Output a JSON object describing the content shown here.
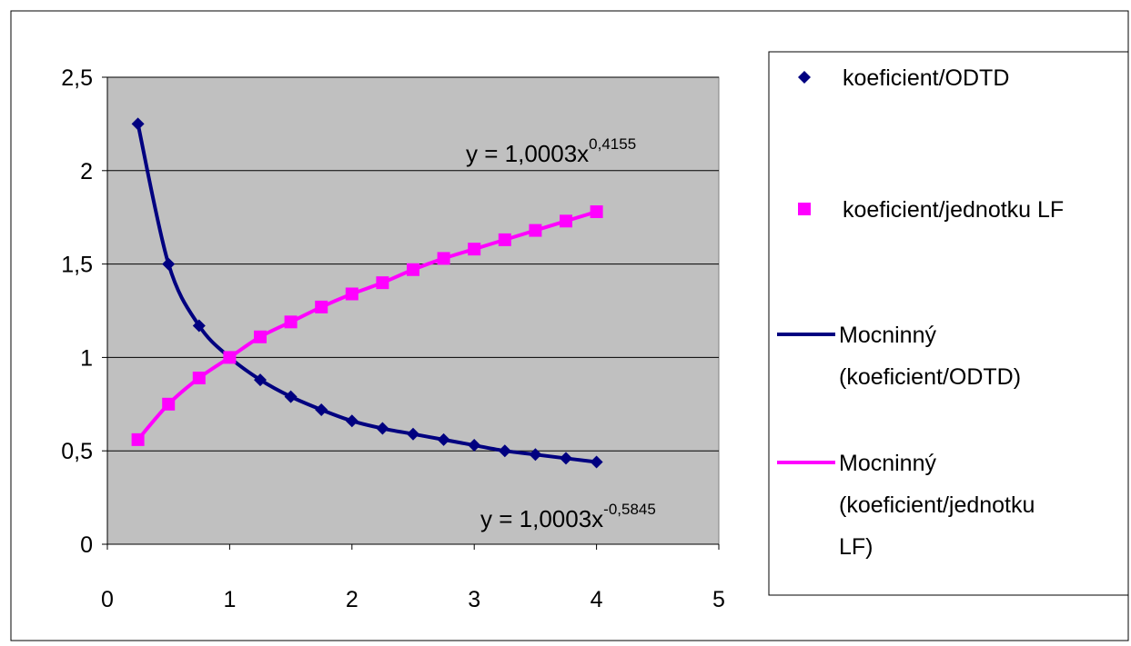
{
  "chart_data": {
    "type": "scatter",
    "title": "",
    "xlabel": "",
    "ylabel": "",
    "xlim": [
      0,
      5
    ],
    "ylim": [
      0,
      2.5
    ],
    "x_ticks": [
      "0",
      "1",
      "2",
      "3",
      "4",
      "5"
    ],
    "y_ticks": [
      "0",
      "0,5",
      "1",
      "1,5",
      "2",
      "2,5"
    ],
    "grid": true,
    "plot_background": "#c0c0c0",
    "legend_position": "right",
    "series": [
      {
        "name": "koeficient/ODTD",
        "kind": "markers",
        "marker": "diamond",
        "color": "#000080",
        "x": [
          0.25,
          0.5,
          0.75,
          1,
          1.25,
          1.5,
          1.75,
          2,
          2.25,
          2.5,
          2.75,
          3,
          3.25,
          3.5,
          3.75,
          4
        ],
        "y": [
          2.25,
          1.5,
          1.17,
          1.0,
          0.88,
          0.79,
          0.72,
          0.66,
          0.62,
          0.59,
          0.56,
          0.53,
          0.5,
          0.48,
          0.46,
          0.44
        ]
      },
      {
        "name": "koeficient/jednotku LF",
        "kind": "markers",
        "marker": "square",
        "color": "#ff00ff",
        "x": [
          0.25,
          0.5,
          0.75,
          1,
          1.25,
          1.5,
          1.75,
          2,
          2.25,
          2.5,
          2.75,
          3,
          3.25,
          3.5,
          3.75,
          4
        ],
        "y": [
          0.56,
          0.75,
          0.89,
          1.0,
          1.11,
          1.19,
          1.27,
          1.34,
          1.4,
          1.47,
          1.53,
          1.58,
          1.63,
          1.68,
          1.73,
          1.78
        ]
      },
      {
        "name": "Mocninný (koeficient/ODTD)",
        "kind": "line",
        "color": "#000080",
        "x": [
          0.25,
          0.5,
          0.75,
          1,
          1.25,
          1.5,
          1.75,
          2,
          2.25,
          2.5,
          2.75,
          3,
          3.25,
          3.5,
          3.75,
          4
        ],
        "y": [
          2.25,
          1.5,
          1.17,
          1.0,
          0.88,
          0.79,
          0.72,
          0.66,
          0.62,
          0.59,
          0.56,
          0.53,
          0.5,
          0.48,
          0.46,
          0.44
        ]
      },
      {
        "name": "Mocninný (koeficient/jednotku LF)",
        "kind": "line",
        "color": "#ff00ff",
        "x": [
          0.25,
          0.5,
          0.75,
          1,
          1.25,
          1.5,
          1.75,
          2,
          2.25,
          2.5,
          2.75,
          3,
          3.25,
          3.5,
          3.75,
          4
        ],
        "y": [
          0.56,
          0.75,
          0.89,
          1.0,
          1.11,
          1.19,
          1.27,
          1.34,
          1.4,
          1.47,
          1.53,
          1.58,
          1.63,
          1.68,
          1.73,
          1.78
        ]
      }
    ],
    "legend": {
      "entries": [
        {
          "lines": [
            "koeficient/ODTD"
          ],
          "symbol": "diamond",
          "color": "#000080"
        },
        {
          "lines": [
            "koeficient/jednotku LF"
          ],
          "symbol": "square",
          "color": "#ff00ff"
        },
        {
          "lines": [
            "Mocninný",
            "(koeficient/ODTD)"
          ],
          "symbol": "line",
          "color": "#000080"
        },
        {
          "lines": [
            "Mocninný",
            "(koeficient/jednotku",
            "LF)"
          ],
          "symbol": "line",
          "color": "#ff00ff"
        }
      ]
    },
    "annotations": [
      {
        "series": "koeficient/jednotku LF",
        "base": "y = 1,0003x",
        "exponent": "0,4155"
      },
      {
        "series": "koeficient/ODTD",
        "base": "y = 1,0003x",
        "exponent": "-0,5845"
      }
    ]
  }
}
